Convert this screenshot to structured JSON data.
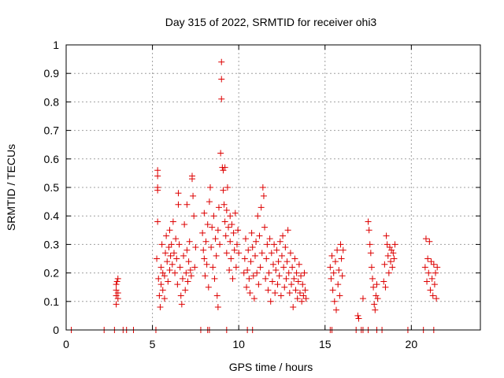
{
  "colors": {
    "marker": "#dd0000",
    "grid": "#a0a0a0",
    "axis": "#000000",
    "background": "#ffffff"
  },
  "chart_data": {
    "type": "scatter",
    "title": "Day 315 of 2022, SRMTID for receiver ohi3",
    "xlabel": "GPS time / hours",
    "ylabel": "SRMTID / TECUs",
    "xlim": [
      0,
      24
    ],
    "ylim": [
      0,
      1
    ],
    "xticks": [
      0,
      5,
      10,
      15,
      20
    ],
    "xtick_labels": [
      "0",
      "5",
      "10",
      "15",
      "20"
    ],
    "yticks": [
      0,
      0.1,
      0.2,
      0.3,
      0.4,
      0.5,
      0.6,
      0.7,
      0.8,
      0.9,
      1
    ],
    "ytick_labels": [
      "0",
      "0.1",
      "0.2",
      "0.3",
      "0.4",
      "0.5",
      "0.6",
      "0.7",
      "0.8",
      "0.9",
      "1"
    ],
    "grid": true,
    "marker": "+",
    "series": [
      {
        "name": "SRMTID",
        "points": [
          [
            0.3,
            0
          ],
          [
            2.2,
            0
          ],
          [
            2.8,
            0
          ],
          [
            3.3,
            0
          ],
          [
            3.5,
            0
          ],
          [
            3.9,
            0
          ],
          [
            5.2,
            0
          ],
          [
            7.8,
            0
          ],
          [
            8.2,
            0
          ],
          [
            8.3,
            0
          ],
          [
            9.3,
            0
          ],
          [
            10.5,
            0
          ],
          [
            10.8,
            0
          ],
          [
            15.3,
            0
          ],
          [
            15.4,
            0
          ],
          [
            16.8,
            0
          ],
          [
            17.1,
            0
          ],
          [
            17.2,
            0
          ],
          [
            17.5,
            0
          ],
          [
            18.0,
            0
          ],
          [
            18.3,
            0
          ],
          [
            19.8,
            0
          ],
          [
            20.7,
            0
          ],
          [
            21.3,
            0
          ],
          [
            2.9,
            0.09
          ],
          [
            2.9,
            0.12
          ],
          [
            2.9,
            0.14
          ],
          [
            2.9,
            0.16
          ],
          [
            2.95,
            0.17
          ],
          [
            3.0,
            0.18
          ],
          [
            3.0,
            0.13
          ],
          [
            3.0,
            0.11
          ],
          [
            5.3,
            0.56
          ],
          [
            5.3,
            0.54
          ],
          [
            5.3,
            0.5
          ],
          [
            5.3,
            0.49
          ],
          [
            5.3,
            0.38
          ],
          [
            5.25,
            0.25
          ],
          [
            5.35,
            0.18
          ],
          [
            5.4,
            0.12
          ],
          [
            5.45,
            0.08
          ],
          [
            5.5,
            0.16
          ],
          [
            5.5,
            0.22
          ],
          [
            5.55,
            0.3
          ],
          [
            5.6,
            0.2
          ],
          [
            5.6,
            0.14
          ],
          [
            5.7,
            0.11
          ],
          [
            5.7,
            0.19
          ],
          [
            5.75,
            0.27
          ],
          [
            5.8,
            0.33
          ],
          [
            5.85,
            0.24
          ],
          [
            5.9,
            0.17
          ],
          [
            5.95,
            0.29
          ],
          [
            6.0,
            0.21
          ],
          [
            6.0,
            0.35
          ],
          [
            6.05,
            0.26
          ],
          [
            6.1,
            0.3
          ],
          [
            6.15,
            0.23
          ],
          [
            6.2,
            0.38
          ],
          [
            6.25,
            0.27
          ],
          [
            6.3,
            0.2
          ],
          [
            6.35,
            0.32
          ],
          [
            6.4,
            0.25
          ],
          [
            6.45,
            0.16
          ],
          [
            6.5,
            0.44
          ],
          [
            6.5,
            0.48
          ],
          [
            6.55,
            0.3
          ],
          [
            6.6,
            0.22
          ],
          [
            6.65,
            0.12
          ],
          [
            6.7,
            0.09
          ],
          [
            6.75,
            0.18
          ],
          [
            6.8,
            0.26
          ],
          [
            6.85,
            0.37
          ],
          [
            6.9,
            0.14
          ],
          [
            6.95,
            0.2
          ],
          [
            7.0,
            0.28
          ],
          [
            7.0,
            0.44
          ],
          [
            7.05,
            0.17
          ],
          [
            7.1,
            0.24
          ],
          [
            7.15,
            0.31
          ],
          [
            7.2,
            0.21
          ],
          [
            7.25,
            0.19
          ],
          [
            7.3,
            0.54
          ],
          [
            7.3,
            0.53
          ],
          [
            7.35,
            0.47
          ],
          [
            7.4,
            0.4
          ],
          [
            7.45,
            0.22
          ],
          [
            7.5,
            0.29
          ],
          [
            7.9,
            0.34
          ],
          [
            7.95,
            0.28
          ],
          [
            8.0,
            0.41
          ],
          [
            8.0,
            0.25
          ],
          [
            8.05,
            0.19
          ],
          [
            8.1,
            0.31
          ],
          [
            8.15,
            0.23
          ],
          [
            8.2,
            0.37
          ],
          [
            8.25,
            0.15
          ],
          [
            8.3,
            0.45
          ],
          [
            8.35,
            0.5
          ],
          [
            8.4,
            0.29
          ],
          [
            8.45,
            0.36
          ],
          [
            8.5,
            0.22
          ],
          [
            8.55,
            0.4
          ],
          [
            8.6,
            0.18
          ],
          [
            8.65,
            0.32
          ],
          [
            8.7,
            0.26
          ],
          [
            8.75,
            0.12
          ],
          [
            8.8,
            0.35
          ],
          [
            8.8,
            0.08
          ],
          [
            8.85,
            0.43
          ],
          [
            8.9,
            0.3
          ],
          [
            8.95,
            0.62
          ],
          [
            9.0,
            0.94
          ],
          [
            9.0,
            0.88
          ],
          [
            9.0,
            0.81
          ],
          [
            9.05,
            0.57
          ],
          [
            9.1,
            0.49
          ],
          [
            9.1,
            0.56
          ],
          [
            9.15,
            0.44
          ],
          [
            9.2,
            0.38
          ],
          [
            9.2,
            0.57
          ],
          [
            9.25,
            0.33
          ],
          [
            9.3,
            0.27
          ],
          [
            9.3,
            0.42
          ],
          [
            9.35,
            0.5
          ],
          [
            9.4,
            0.36
          ],
          [
            9.45,
            0.21
          ],
          [
            9.5,
            0.4
          ],
          [
            9.5,
            0.31
          ],
          [
            9.55,
            0.25
          ],
          [
            9.6,
            0.37
          ],
          [
            9.65,
            0.18
          ],
          [
            9.7,
            0.34
          ],
          [
            9.75,
            0.28
          ],
          [
            9.8,
            0.41
          ],
          [
            9.85,
            0.22
          ],
          [
            9.9,
            0.3
          ],
          [
            9.95,
            0.35
          ],
          [
            10.0,
            0.27
          ],
          [
            10.3,
            0.2
          ],
          [
            10.35,
            0.25
          ],
          [
            10.4,
            0.32
          ],
          [
            10.45,
            0.15
          ],
          [
            10.5,
            0.21
          ],
          [
            10.55,
            0.28
          ],
          [
            10.6,
            0.18
          ],
          [
            10.65,
            0.13
          ],
          [
            10.7,
            0.24
          ],
          [
            10.75,
            0.34
          ],
          [
            10.8,
            0.29
          ],
          [
            10.85,
            0.19
          ],
          [
            10.9,
            0.11
          ],
          [
            10.95,
            0.26
          ],
          [
            11.0,
            0.31
          ],
          [
            11.05,
            0.2
          ],
          [
            11.1,
            0.4
          ],
          [
            11.15,
            0.16
          ],
          [
            11.2,
            0.33
          ],
          [
            11.25,
            0.22
          ],
          [
            11.3,
            0.43
          ],
          [
            11.35,
            0.27
          ],
          [
            11.4,
            0.5
          ],
          [
            11.45,
            0.47
          ],
          [
            11.5,
            0.36
          ],
          [
            11.55,
            0.18
          ],
          [
            11.6,
            0.25
          ],
          [
            11.65,
            0.3
          ],
          [
            11.7,
            0.14
          ],
          [
            11.75,
            0.2
          ],
          [
            11.8,
            0.32
          ],
          [
            11.85,
            0.1
          ],
          [
            11.9,
            0.27
          ],
          [
            11.95,
            0.17
          ],
          [
            12.0,
            0.23
          ],
          [
            12.05,
            0.3
          ],
          [
            12.1,
            0.13
          ],
          [
            12.15,
            0.21
          ],
          [
            12.2,
            0.28
          ],
          [
            12.25,
            0.16
          ],
          [
            12.3,
            0.24
          ],
          [
            12.35,
            0.19
          ],
          [
            12.4,
            0.31
          ],
          [
            12.45,
            0.12
          ],
          [
            12.5,
            0.26
          ],
          [
            12.55,
            0.33
          ],
          [
            12.6,
            0.22
          ],
          [
            12.65,
            0.15
          ],
          [
            12.7,
            0.29
          ],
          [
            12.75,
            0.18
          ],
          [
            12.8,
            0.24
          ],
          [
            12.85,
            0.35
          ],
          [
            12.9,
            0.2
          ],
          [
            12.95,
            0.13
          ],
          [
            13.0,
            0.27
          ],
          [
            13.05,
            0.16
          ],
          [
            13.1,
            0.22
          ],
          [
            13.15,
            0.08
          ],
          [
            13.2,
            0.18
          ],
          [
            13.25,
            0.25
          ],
          [
            13.3,
            0.14
          ],
          [
            13.35,
            0.2
          ],
          [
            13.4,
            0.11
          ],
          [
            13.45,
            0.17
          ],
          [
            13.5,
            0.23
          ],
          [
            13.55,
            0.13
          ],
          [
            13.6,
            0.19
          ],
          [
            13.65,
            0.1
          ],
          [
            13.7,
            0.16
          ],
          [
            13.75,
            0.12
          ],
          [
            13.8,
            0.2
          ],
          [
            13.85,
            0.14
          ],
          [
            13.9,
            0.11
          ],
          [
            15.3,
            0.22
          ],
          [
            15.35,
            0.18
          ],
          [
            15.4,
            0.26
          ],
          [
            15.45,
            0.14
          ],
          [
            15.5,
            0.2
          ],
          [
            15.55,
            0.1
          ],
          [
            15.6,
            0.24
          ],
          [
            15.65,
            0.07
          ],
          [
            15.7,
            0.28
          ],
          [
            15.75,
            0.16
          ],
          [
            15.8,
            0.21
          ],
          [
            15.85,
            0.12
          ],
          [
            15.9,
            0.3
          ],
          [
            15.95,
            0.25
          ],
          [
            16.0,
            0.19
          ],
          [
            16.05,
            0.28
          ],
          [
            16.9,
            0.05
          ],
          [
            16.95,
            0.04
          ],
          [
            17.2,
            0.11
          ],
          [
            17.5,
            0.38
          ],
          [
            17.55,
            0.35
          ],
          [
            17.6,
            0.3
          ],
          [
            17.65,
            0.27
          ],
          [
            17.7,
            0.22
          ],
          [
            17.75,
            0.18
          ],
          [
            17.8,
            0.15
          ],
          [
            17.85,
            0.09
          ],
          [
            17.9,
            0.07
          ],
          [
            17.95,
            0.12
          ],
          [
            18.0,
            0.16
          ],
          [
            18.05,
            0.11
          ],
          [
            18.4,
            0.17
          ],
          [
            18.45,
            0.23
          ],
          [
            18.5,
            0.15
          ],
          [
            18.55,
            0.33
          ],
          [
            18.6,
            0.3
          ],
          [
            18.65,
            0.26
          ],
          [
            18.7,
            0.2
          ],
          [
            18.75,
            0.29
          ],
          [
            18.8,
            0.24
          ],
          [
            18.85,
            0.28
          ],
          [
            18.9,
            0.22
          ],
          [
            18.95,
            0.27
          ],
          [
            19.0,
            0.25
          ],
          [
            19.05,
            0.3
          ],
          [
            20.8,
            0.22
          ],
          [
            20.85,
            0.32
          ],
          [
            20.9,
            0.17
          ],
          [
            20.95,
            0.25
          ],
          [
            21.0,
            0.2
          ],
          [
            21.05,
            0.31
          ],
          [
            21.1,
            0.14
          ],
          [
            21.15,
            0.24
          ],
          [
            21.2,
            0.18
          ],
          [
            21.25,
            0.12
          ],
          [
            21.3,
            0.23
          ],
          [
            21.35,
            0.16
          ],
          [
            21.4,
            0.2
          ],
          [
            21.45,
            0.11
          ],
          [
            21.5,
            0.22
          ]
        ]
      }
    ]
  }
}
